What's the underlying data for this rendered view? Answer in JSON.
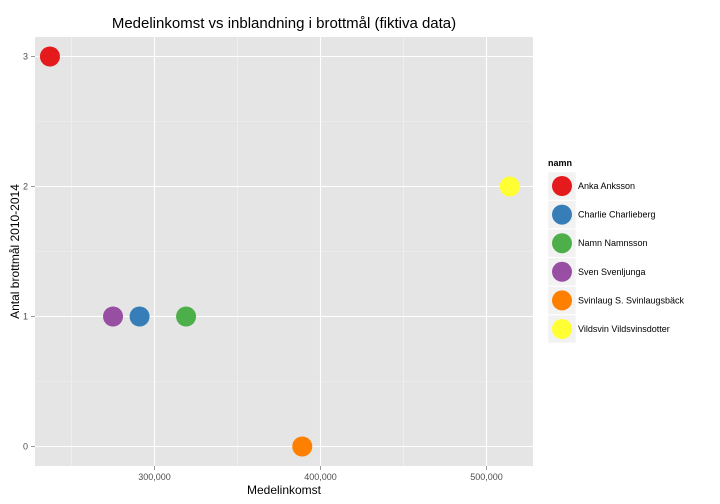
{
  "chart_data": {
    "type": "scatter",
    "title": "Medelinkomst vs inblandning i brottmål (fiktiva data)",
    "xlabel": "Medelinkomst",
    "ylabel": "Antal brottmål 2010-2014",
    "xlim": [
      228000,
      528000
    ],
    "ylim": [
      -0.15,
      3.15
    ],
    "x_ticks": [
      {
        "value": 300000,
        "label": "300,000"
      },
      {
        "value": 400000,
        "label": "400,000"
      },
      {
        "value": 500000,
        "label": "500,000"
      }
    ],
    "x_minor": [
      250000,
      350000,
      450000
    ],
    "y_ticks": [
      {
        "value": 0,
        "label": "0"
      },
      {
        "value": 1,
        "label": "1"
      },
      {
        "value": 2,
        "label": "2"
      },
      {
        "value": 3,
        "label": "3"
      }
    ],
    "y_minor": [
      0.5,
      1.5,
      2.5
    ],
    "grid": true,
    "legend": {
      "title": "namn",
      "position": "right",
      "entries": [
        {
          "label": "Anka Anksson",
          "color": "#e41a1c"
        },
        {
          "label": "Charlie Charlieberg",
          "color": "#377eb8"
        },
        {
          "label": "Namn Namnsson",
          "color": "#4daf4a"
        },
        {
          "label": "Sven Svenljunga",
          "color": "#984ea3"
        },
        {
          "label": "Svinlaug S. Svinlaugsbäck",
          "color": "#ff7f00"
        },
        {
          "label": "Vildsvin Vildsvinsdotter",
          "color": "#ffff33"
        }
      ]
    },
    "points": [
      {
        "name": "Anka Anksson",
        "x": 237000,
        "y": 3
      },
      {
        "name": "Charlie Charlieberg",
        "x": 291000,
        "y": 1
      },
      {
        "name": "Namn Namnsson",
        "x": 319000,
        "y": 1
      },
      {
        "name": "Sven Svenljunga",
        "x": 275000,
        "y": 1
      },
      {
        "name": "Svinlaug S. Svinlaugsbäck",
        "x": 389000,
        "y": 0
      },
      {
        "name": "Vildsvin Vildsvinsdotter",
        "x": 514000,
        "y": 2
      }
    ]
  }
}
